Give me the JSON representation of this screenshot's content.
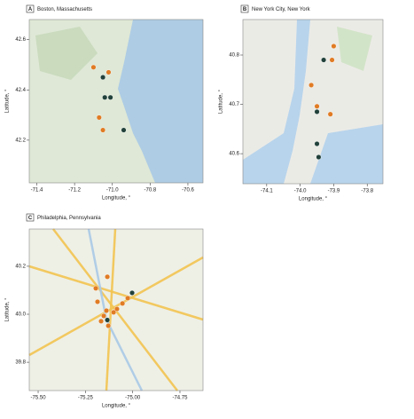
{
  "chart_data": [
    {
      "type": "scatter",
      "panel": "A",
      "title": "Boston, Massachusetts",
      "xlabel": "Longitude, °",
      "ylabel": "Latitude, °",
      "xlim": [
        -71.44,
        -70.52
      ],
      "ylim": [
        42.03,
        42.68
      ],
      "xticks": [
        -71.4,
        -71.2,
        {
          "value": -71.0,
          "label": "-71.0"
        },
        -70.8,
        -70.6
      ],
      "yticks": [
        42.2,
        42.4,
        42.6
      ],
      "series": [
        {
          "color": "#e07b24",
          "x": [
            -71.1,
            -71.02,
            -71.07,
            -71.05
          ],
          "values": [
            42.49,
            42.47,
            42.29,
            42.24
          ]
        },
        {
          "color": "#21413a",
          "x": [
            -71.05,
            -71.04,
            -71.01,
            -70.94
          ],
          "values": [
            42.45,
            42.37,
            42.37,
            42.24
          ]
        }
      ]
    },
    {
      "type": "scatter",
      "panel": "B",
      "title": "New York City, New York",
      "xlabel": "Longitude, °",
      "ylabel": "Latitude, °",
      "xlim": [
        -74.171,
        -73.753
      ],
      "ylim": [
        40.539,
        40.872
      ],
      "xticks": [
        -74.1,
        {
          "value": -74.0,
          "label": "-74.0"
        },
        -73.9,
        -73.8
      ],
      "yticks": [
        40.6,
        40.7,
        40.8
      ],
      "series": [
        {
          "color": "#e07b24",
          "x": [
            -73.9,
            -73.905,
            -73.967,
            -73.95,
            -73.91
          ],
          "values": [
            40.818,
            40.79,
            40.739,
            40.696,
            40.68
          ]
        },
        {
          "color": "#21413a",
          "x": [
            -73.93,
            -73.95,
            -73.95,
            -73.945
          ],
          "values": [
            40.79,
            40.685,
            40.62,
            40.593
          ]
        }
      ]
    },
    {
      "type": "scatter",
      "panel": "C",
      "title": "Philadelphia, Pennsylvania",
      "xlabel": "Longitude, °",
      "ylabel": "Latitude, °",
      "xlim": [
        -75.547,
        -74.628
      ],
      "ylim": [
        39.682,
        40.355
      ],
      "xticks": [
        {
          "value": -75.5,
          "label": "-75.50"
        },
        -75.25,
        {
          "value": -75.0,
          "label": "-75.00"
        },
        -74.75
      ],
      "yticks": [
        39.8,
        {
          "value": 40.0,
          "label": "40.0"
        },
        40.2
      ],
      "series": [
        {
          "color": "#e07b24",
          "x": [
            -75.134,
            -75.195,
            -75.186,
            -75.054,
            -75.083,
            -75.026,
            -75.139,
            -75.153,
            -75.101,
            -75.167,
            -75.129
          ],
          "values": [
            40.156,
            40.108,
            40.052,
            40.045,
            40.022,
            40.067,
            40.015,
            39.993,
            40.008,
            39.971,
            39.952
          ]
        },
        {
          "color": "#21413a",
          "x": [
            -75.003,
            -75.134
          ],
          "values": [
            40.089,
            39.976
          ]
        }
      ]
    }
  ]
}
